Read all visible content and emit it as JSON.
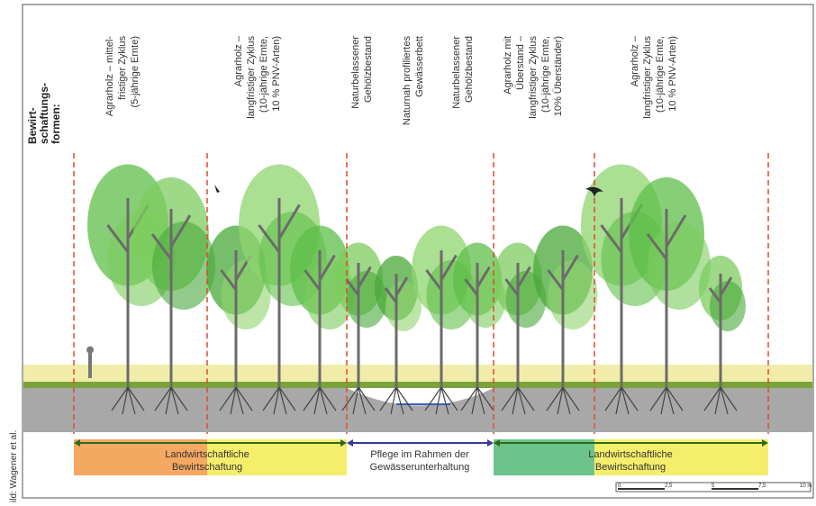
{
  "header": {
    "lines": [
      "Bewirt-",
      "schaftungs-",
      "formen:"
    ]
  },
  "columns": [
    {
      "lines": [
        "Agrarholz – mittel-",
        "fristiger Zyklus",
        "(5-jährige Ernte)"
      ]
    },
    {
      "lines": [
        "Agrarholz –",
        "langfristiger Zyklus",
        "(10-jährige Ernte,",
        "10 % PNV-Arten)"
      ]
    },
    {
      "lines": [
        "Naturbelassener",
        "Gehölzbestand"
      ]
    },
    {
      "lines": [
        "Naturnah profiliertes",
        "Gewässerbett"
      ]
    },
    {
      "lines": [
        "Naturbelassener",
        "Gehölzbestand"
      ]
    },
    {
      "lines": [
        "Agrarholz mit",
        "Überstand –",
        "langfristiger Zyklus",
        "(10-jährige Ernte,",
        "10% Überständer)"
      ]
    },
    {
      "lines": [
        "Agrarholz –",
        "langfristiger Zyklus",
        "(10-jährige Ernte,",
        "10 % PNV-Arten)"
      ]
    }
  ],
  "bands": [
    {
      "lines": [
        "Landwirtschaftliche",
        "Bewirtschaftung"
      ]
    },
    {
      "lines": [
        "Pflege im Rahmen der",
        "Gewässerunterhaltung"
      ]
    },
    {
      "lines": [
        "Landwirtschaftliche",
        "Bewirtschaftung"
      ]
    }
  ],
  "scale": [
    "0",
    "2,5",
    "5",
    "7,5",
    "10 m"
  ],
  "credit": "ild: Wagener et al."
}
